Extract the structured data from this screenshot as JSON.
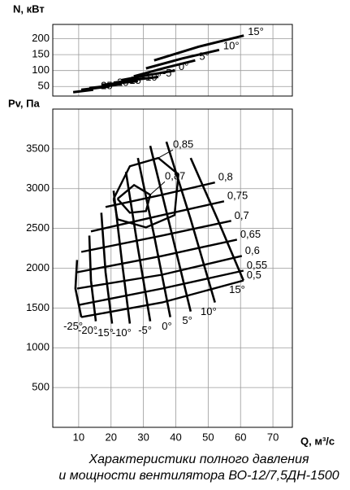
{
  "caption": [
    "Характеристики полного давления",
    "и мощности вентилятора ВО-12/7,5ДН-1500"
  ],
  "chart_data": [
    {
      "type": "line",
      "ylabel": "N, кВт",
      "ylim": [
        20,
        245
      ],
      "yticks": [
        50,
        100,
        150,
        200
      ],
      "grid": true,
      "color": "#000000",
      "series": [
        {
          "name": "15°",
          "x": [
            33.3,
            47,
            61
          ],
          "values": [
            132,
            175,
            210
          ]
        },
        {
          "name": "10°",
          "x": [
            30.8,
            42,
            53.4
          ],
          "values": [
            107,
            138,
            165
          ]
        },
        {
          "name": "5°",
          "x": [
            27,
            36.5,
            46
          ],
          "values": [
            82,
            108,
            132
          ]
        },
        {
          "name": "0°",
          "x": [
            23.3,
            31.5,
            39.6
          ],
          "values": [
            70,
            86,
            100
          ]
        },
        {
          "name": "-5°",
          "x": [
            20.8,
            27.7,
            34.6
          ],
          "values": [
            62,
            72,
            80
          ]
        },
        {
          "name": "-10°",
          "x": [
            17,
            22.7,
            28.3
          ],
          "values": [
            55,
            61,
            67
          ]
        },
        {
          "name": "-15°",
          "x": [
            13.3,
            18.3,
            23.3
          ],
          "values": [
            45,
            51,
            57
          ]
        },
        {
          "name": "-20°",
          "x": [
            10.8,
            15.2,
            19.5
          ],
          "values": [
            40,
            45,
            50
          ]
        },
        {
          "name": "-25°",
          "x": [
            8.3,
            11.4,
            14.5
          ],
          "values": [
            32,
            36,
            40
          ]
        }
      ]
    },
    {
      "type": "line",
      "ylabel": "Pv, Па",
      "xlabel": "Q, м³/с",
      "xlim": [
        2,
        76
      ],
      "ylim": [
        0,
        4000
      ],
      "xticks": [
        10,
        20,
        30,
        40,
        50,
        60,
        70
      ],
      "yticks": [
        500,
        1000,
        1500,
        2000,
        2500,
        3000,
        3500
      ],
      "grid": true,
      "color": "#000000",
      "series": [
        {
          "name": "-25°",
          "x": [
            9.5,
            9.0,
            10.8
          ],
          "values": [
            2103,
            1744,
            1385
          ]
        },
        {
          "name": "-20°",
          "x": [
            13.3,
            13.8,
            15.3
          ],
          "values": [
            2410,
            1846,
            1333
          ]
        },
        {
          "name": "-15°",
          "x": [
            17,
            18.3,
            20.3
          ],
          "values": [
            2697,
            1949,
            1303
          ]
        },
        {
          "name": "-10°",
          "x": [
            20.8,
            23.3,
            25.8
          ],
          "values": [
            2974,
            2103,
            1303
          ]
        },
        {
          "name": "-5°",
          "x": [
            24.6,
            28.3,
            32.1
          ],
          "values": [
            3210,
            2256,
            1333
          ]
        },
        {
          "name": "0°",
          "x": [
            28.3,
            33.3,
            38.3
          ],
          "values": [
            3385,
            2410,
            1385
          ]
        },
        {
          "name": "5°",
          "x": [
            32.1,
            38.3,
            44.6
          ],
          "values": [
            3538,
            2513,
            1456
          ]
        },
        {
          "name": "10°",
          "x": [
            37.1,
            44.6,
            52.1
          ],
          "values": [
            3590,
            2615,
            1569
          ]
        },
        {
          "name": "15°",
          "x": [
            44.6,
            52.9,
            60.9
          ],
          "values": [
            3385,
            2615,
            1846
          ]
        }
      ],
      "efficiency": [
        {
          "name": "0,87",
          "x": [
            22,
            27.1,
            32.1,
            30.8,
            25.8,
            22
          ],
          "values": [
            2872,
            3046,
            2923,
            2718,
            2697,
            2872
          ]
        },
        {
          "name": "0,85",
          "x": [
            20.8,
            25.8,
            34.6,
            40.8,
            39.6,
            30.8,
            22,
            20.8
          ],
          "values": [
            2872,
            3282,
            3385,
            3179,
            2667,
            2513,
            2615,
            2872
          ]
        },
        {
          "name": "0,8",
          "x": [
            18.3,
            35.8,
            52.1
          ],
          "values": [
            2769,
            2923,
            3077
          ]
        },
        {
          "name": "0,75",
          "x": [
            13.8,
            35.8,
            54.9
          ],
          "values": [
            2462,
            2667,
            2841
          ]
        },
        {
          "name": "0,7",
          "x": [
            10.8,
            35.8,
            57.1
          ],
          "values": [
            2205,
            2410,
            2595
          ]
        },
        {
          "name": "0,65",
          "x": [
            9.5,
            35.8,
            58.9
          ],
          "values": [
            1949,
            2154,
            2359
          ]
        },
        {
          "name": "0,6",
          "x": [
            9.5,
            35.8,
            60.4
          ],
          "values": [
            1744,
            1918,
            2154
          ]
        },
        {
          "name": "0,55",
          "x": [
            10,
            35.8,
            60.9
          ],
          "values": [
            1538,
            1744,
            1969
          ]
        },
        {
          "name": "0,5",
          "x": [
            10.8,
            35.8,
            60.9
          ],
          "values": [
            1385,
            1569,
            1846
          ]
        }
      ]
    }
  ]
}
